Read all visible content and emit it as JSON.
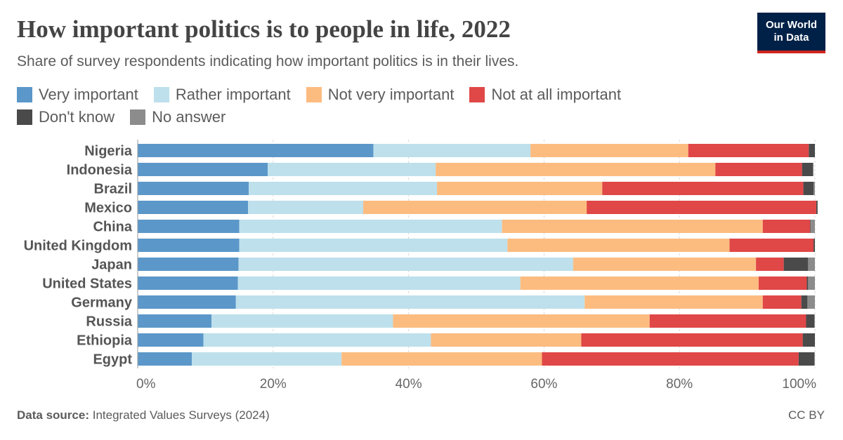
{
  "header": {
    "title": "How important politics is to people in life, 2022",
    "subtitle": "Share of survey respondents indicating how important politics is in their lives."
  },
  "logo": {
    "line1": "Our World",
    "line2": "in Data"
  },
  "footer": {
    "source_label": "Data source:",
    "source_text": "Integrated Values Surveys (2024)",
    "license": "CC BY"
  },
  "chart_data": {
    "type": "bar",
    "orientation": "horizontal",
    "stacked": true,
    "title": "How important politics is to people in life, 2022",
    "subtitle": "Share of survey respondents indicating how important politics is in their lives.",
    "xlim": [
      0,
      100
    ],
    "x_ticks": [
      "0%",
      "20%",
      "40%",
      "60%",
      "80%",
      "100%"
    ],
    "grid": "vertical dashed",
    "legend_position": "top",
    "categories": [
      "Nigeria",
      "Indonesia",
      "Brazil",
      "Mexico",
      "China",
      "United Kingdom",
      "Japan",
      "United States",
      "Germany",
      "Russia",
      "Ethiopia",
      "Egypt"
    ],
    "series": [
      {
        "name": "Very important",
        "color": "#5b97c9",
        "values": [
          34.8,
          19.2,
          16.4,
          16.3,
          15.0,
          15.0,
          14.9,
          14.8,
          14.5,
          10.9,
          9.7,
          8.0
        ]
      },
      {
        "name": "Rather important",
        "color": "#bde0ec",
        "values": [
          23.2,
          24.8,
          27.8,
          17.0,
          38.8,
          39.6,
          49.4,
          41.7,
          51.5,
          26.8,
          33.6,
          22.1
        ]
      },
      {
        "name": "Not very important",
        "color": "#fcbc80",
        "values": [
          23.3,
          41.3,
          24.4,
          33.0,
          38.5,
          32.8,
          27.0,
          35.2,
          26.3,
          37.9,
          22.2,
          29.6
        ]
      },
      {
        "name": "Not at all important",
        "color": "#e04747",
        "values": [
          17.8,
          12.8,
          29.7,
          33.9,
          7.0,
          12.4,
          4.1,
          7.1,
          5.7,
          23.1,
          32.7,
          37.9
        ]
      },
      {
        "name": "Don't know",
        "color": "#4a4a4a",
        "values": [
          0.9,
          1.6,
          1.5,
          0.2,
          0.1,
          0.2,
          3.6,
          0.2,
          0.9,
          1.2,
          1.8,
          2.3
        ]
      },
      {
        "name": "No answer",
        "color": "#8c8c8c",
        "values": [
          0.0,
          0.1,
          0.2,
          0.0,
          0.6,
          0.0,
          1.0,
          1.0,
          1.1,
          0.1,
          0.0,
          0.1
        ]
      }
    ]
  }
}
